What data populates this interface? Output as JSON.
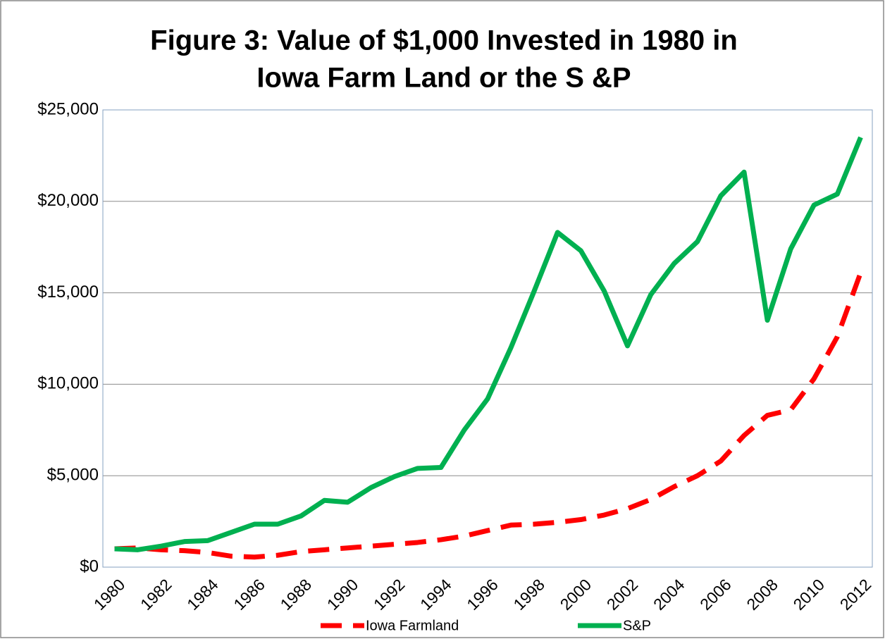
{
  "chart_data": {
    "type": "line",
    "title": [
      "Figure 3: Value of $1,000 Invested in 1980 in",
      "Iowa Farm Land or the S &P"
    ],
    "categories": [
      "1980",
      null,
      "1982",
      null,
      "1984",
      null,
      "1986",
      null,
      "1988",
      null,
      "1990",
      null,
      "1992",
      null,
      "1994",
      null,
      "1996",
      null,
      "1998",
      null,
      "2000",
      null,
      "2002",
      null,
      "2004",
      null,
      "2006",
      null,
      "2008",
      null,
      "2010",
      null,
      "2012"
    ],
    "series": [
      {
        "name": "Iowa Farmland",
        "color": "#ff0000",
        "dashed": true,
        "values": [
          1000,
          1050,
          950,
          900,
          800,
          600,
          550,
          650,
          850,
          950,
          1050,
          1150,
          1250,
          1350,
          1500,
          1700,
          2000,
          2300,
          2350,
          2450,
          2600,
          2850,
          3200,
          3700,
          4400,
          5000,
          5800,
          7200,
          8300,
          8600,
          10300,
          12600,
          16100
        ]
      },
      {
        "name": "S&P",
        "color": "#00b050",
        "dashed": false,
        "values": [
          1000,
          950,
          1150,
          1400,
          1450,
          1900,
          2350,
          2350,
          2800,
          3650,
          3550,
          4350,
          4950,
          5400,
          5450,
          7500,
          9200,
          12000,
          15100,
          18300,
          17300,
          15100,
          12100,
          14900,
          16600,
          17800,
          20300,
          21600,
          13500,
          17400,
          19800,
          20400,
          23500
        ]
      }
    ],
    "ylim": [
      0,
      25000
    ],
    "yticks": [
      {
        "value": 0,
        "label": "$0"
      },
      {
        "value": 5000,
        "label": "$5,000"
      },
      {
        "value": 10000,
        "label": "$10,000"
      },
      {
        "value": 15000,
        "label": "$15,000"
      },
      {
        "value": 20000,
        "label": "$20,000"
      },
      {
        "value": 25000,
        "label": "$25,000"
      }
    ],
    "grid": true,
    "legend": "bottom"
  }
}
